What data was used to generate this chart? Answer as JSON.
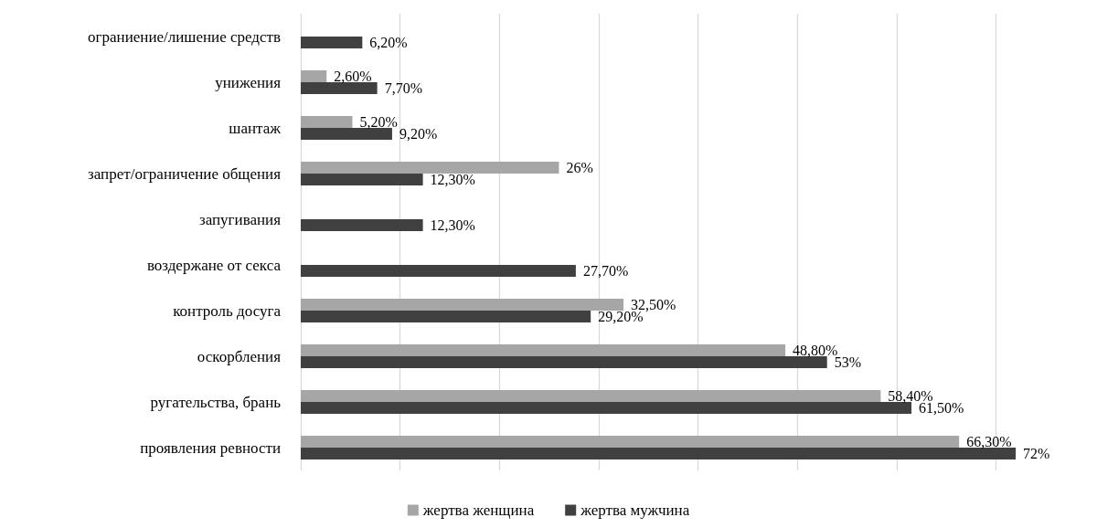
{
  "chart_data": {
    "type": "bar",
    "orientation": "horizontal",
    "categories": [
      "ограниение/лишение средств",
      "унижения",
      "шантаж",
      "запрет/ограничение общения",
      "запугивания",
      "воздержане от секса",
      "контроль досуга",
      "оскорбления",
      "ругательства, брань",
      "проявления ревности"
    ],
    "series": [
      {
        "name": "жертва женщина",
        "color": "#a6a6a6",
        "values": [
          null,
          2.6,
          5.2,
          26,
          null,
          null,
          32.5,
          48.8,
          58.4,
          66.3
        ],
        "value_labels": [
          null,
          "2,60%",
          "5,20%",
          "26%",
          null,
          null,
          "32,50%",
          "48,80%",
          "58,40%",
          "66,30%"
        ]
      },
      {
        "name": "жертва мужчина",
        "color": "#404040",
        "values": [
          6.2,
          7.7,
          9.2,
          12.3,
          12.3,
          27.7,
          29.2,
          53,
          61.5,
          72
        ],
        "value_labels": [
          "6,20%",
          "7,70%",
          "9,20%",
          "12,30%",
          "12,30%",
          "27,70%",
          "29,20%",
          "53%",
          "61,50%",
          "72%"
        ]
      }
    ],
    "xticks": [
      {
        "value": 0,
        "label": null
      },
      {
        "value": 10,
        "label": null
      },
      {
        "value": 20,
        "label": null
      },
      {
        "value": 30,
        "label": null
      },
      {
        "value": 40,
        "label": null
      },
      {
        "value": 50,
        "label": null
      },
      {
        "value": 60,
        "label": null
      },
      {
        "value": 70,
        "label": null
      }
    ],
    "grid": "x",
    "legend": "bottom",
    "tick_labels": "y"
  }
}
